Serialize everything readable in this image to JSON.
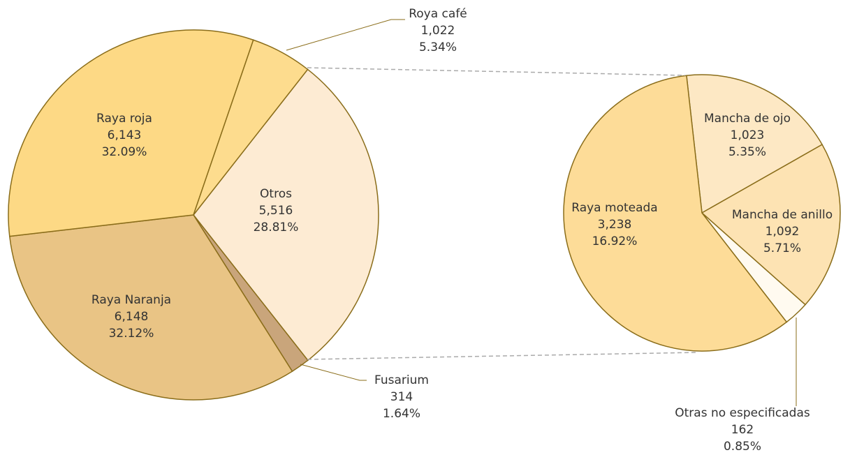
{
  "chart_data": [
    {
      "type": "pie",
      "categories": [
        "Otros",
        "Fusarium",
        "Raya Naranja",
        "Raya roja",
        "Roya café"
      ],
      "values": [
        5516,
        314,
        6148,
        6143,
        1022
      ],
      "value_labels": [
        "5,516",
        "314",
        "6,148",
        "6,143",
        "1,022"
      ],
      "percents": [
        28.81,
        1.64,
        32.12,
        32.09,
        5.34
      ],
      "percent_labels": [
        "28.81%",
        "1.64%",
        "32.12%",
        "32.09%",
        "5.34%"
      ],
      "colors": [
        "#fdebd3",
        "#c9a57b",
        "#e9c485",
        "#fdd985",
        "#fddc8e"
      ]
    },
    {
      "type": "pie",
      "categories": [
        "Mancha de ojo",
        "Mancha de anillo",
        "Otras no especificadas",
        "Raya moteada"
      ],
      "values": [
        1023,
        1092,
        162,
        3238
      ],
      "value_labels": [
        "1,023",
        "1,092",
        "162",
        "3,238"
      ],
      "percents": [
        5.35,
        5.71,
        0.85,
        16.92
      ],
      "percent_labels": [
        "5.35%",
        "5.71%",
        "0.85%",
        "16.92%"
      ],
      "colors": [
        "#fde8c4",
        "#fde3b3",
        "#fffaf0",
        "#fddc98"
      ]
    }
  ]
}
